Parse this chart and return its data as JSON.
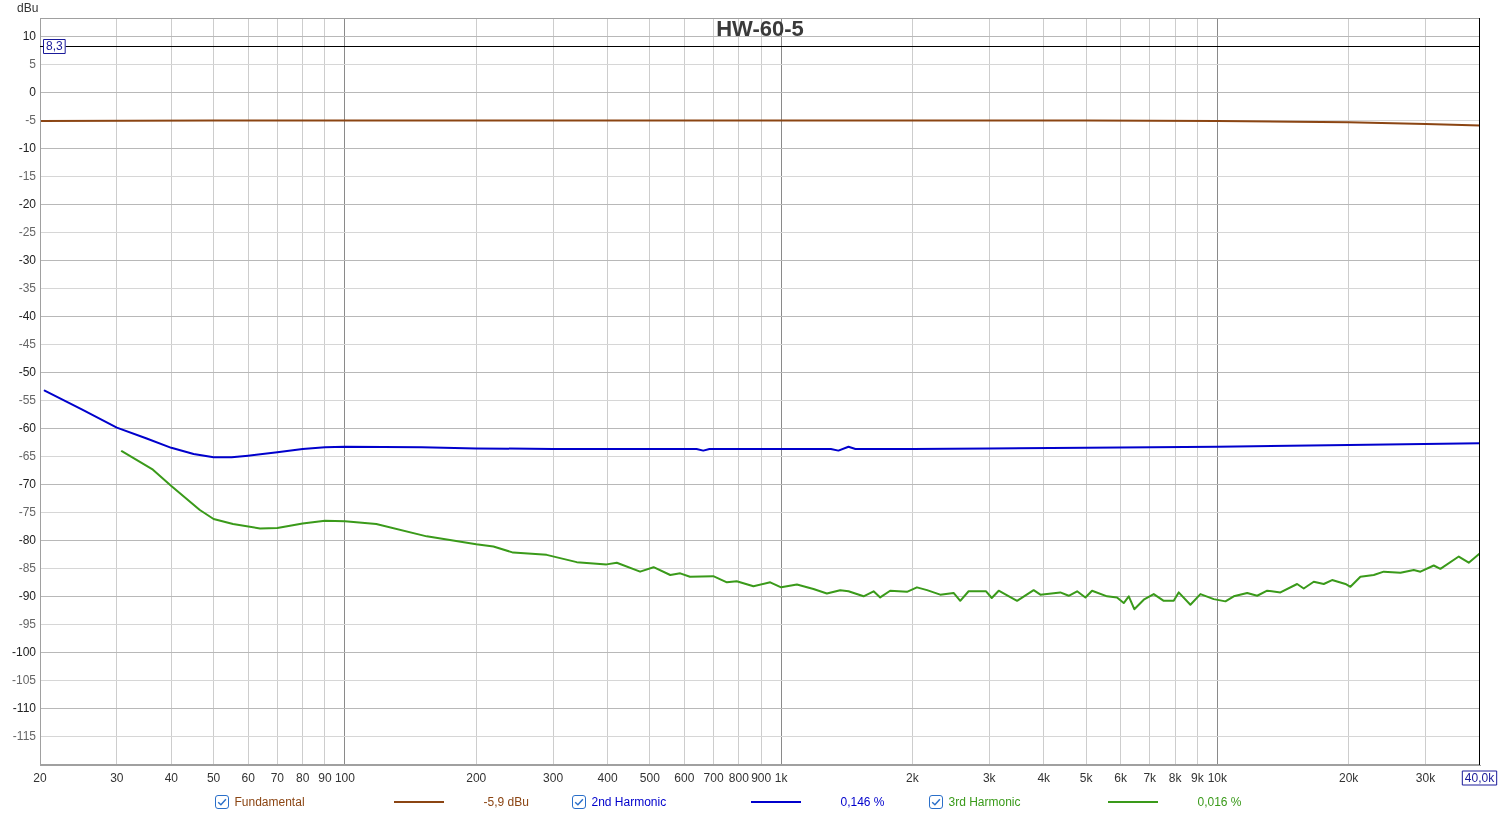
{
  "chart_data": {
    "type": "line",
    "title": "HW-60-5",
    "ylabel": "dBu",
    "xlim": [
      20,
      40000
    ],
    "xticks": [
      20,
      30,
      40,
      50,
      60,
      70,
      80,
      90,
      100,
      200,
      300,
      400,
      500,
      600,
      700,
      800,
      900,
      {
        "value": 1000,
        "label": "1k"
      },
      {
        "value": 2000,
        "label": "2k"
      },
      {
        "value": 3000,
        "label": "3k"
      },
      {
        "value": 4000,
        "label": "4k"
      },
      {
        "value": 5000,
        "label": "5k"
      },
      {
        "value": 6000,
        "label": "6k"
      },
      {
        "value": 7000,
        "label": "7k"
      },
      {
        "value": 8000,
        "label": "8k"
      },
      {
        "value": 9000,
        "label": "9k"
      },
      {
        "value": 10000,
        "label": "10k"
      },
      {
        "value": 20000,
        "label": "20k"
      },
      {
        "value": 30000,
        "label": "30k"
      }
    ],
    "ylim": [
      -120,
      13.3
    ],
    "yticks": [
      10,
      5,
      0,
      -5,
      -10,
      -15,
      -20,
      -25,
      -30,
      -35,
      -40,
      -45,
      -50,
      -55,
      -60,
      -65,
      -70,
      -75,
      -80,
      -85,
      -90,
      -95,
      -100,
      -105,
      -110,
      -115
    ],
    "log": "x",
    "grid": true,
    "legend": "bottom",
    "line_style": "solid",
    "ref_lines": [
      {
        "axis": "y",
        "value": 8.3,
        "label": "8,3",
        "color": "#000000"
      },
      {
        "axis": "x",
        "value": 40000,
        "label": "40,0k",
        "color": "#000000"
      }
    ],
    "annotations": [
      "-5,9 dBu",
      "0,146 %",
      "0,016 %"
    ],
    "series": [
      {
        "name": "Fundamental",
        "color": "#8b4513",
        "x": [
          20,
          50,
          100,
          1000,
          3000,
          5000,
          10000,
          15000,
          20000,
          30000,
          40000
        ],
        "values": [
          -5.1,
          -5,
          -5,
          -5,
          -5,
          -5,
          -5.1,
          -5.2,
          -5.3,
          -5.6,
          -5.9
        ]
      },
      {
        "name": "2nd Harmonic",
        "color": "#0000cc",
        "x": [
          20.5,
          25,
          30,
          35,
          40,
          45,
          50,
          55,
          60,
          70,
          80,
          90,
          100,
          150,
          200,
          300,
          500,
          640,
          663,
          685,
          1000,
          1300,
          1353,
          1427,
          1480,
          2000,
          3000,
          5000,
          10000,
          20000,
          40000
        ],
        "values": [
          -53.2,
          -56.6,
          -59.8,
          -61.7,
          -63.4,
          -64.5,
          -65.1,
          -65.1,
          -64.8,
          -64.2,
          -63.6,
          -63.3,
          -63.2,
          -63.3,
          -63.5,
          -63.6,
          -63.6,
          -63.6,
          -63.9,
          -63.6,
          -63.6,
          -63.6,
          -63.9,
          -63.2,
          -63.6,
          -63.6,
          -63.5,
          -63.4,
          -63.2,
          -62.9,
          -62.6
        ]
      },
      {
        "name": "3rd Harmonic",
        "color": "#3a9a1a",
        "x": [
          30.8,
          36.3,
          40,
          46.5,
          50,
          55.4,
          63.9,
          70,
          80,
          90,
          100,
          118,
          154,
          200,
          219,
          243,
          290,
          340,
          398,
          420,
          475,
          510,
          557,
          587,
          618,
          699,
          751,
          791,
          864,
          944,
          1000,
          1087,
          1186,
          1273,
          1366,
          1427,
          1545,
          1629,
          1687,
          1778,
          1943,
          2048,
          2160,
          2316,
          2485,
          2574,
          2690,
          2950,
          3040,
          3153,
          3474,
          3792,
          3929,
          4365,
          4563,
          4769,
          4983,
          5161,
          5587,
          5888,
          6100,
          6265,
          6451,
          6780,
          7147,
          7535,
          7942,
          8153,
          8673,
          9146,
          9810,
          10435,
          10904,
          11706,
          12340,
          13007,
          13951,
          15235,
          15776,
          16631,
          17535,
          18323,
          19662,
          20184,
          21276,
          22829,
          24066,
          26289,
          28198,
          29211,
          31333,
          32454,
          35758,
          37693,
          40000
        ],
        "values": [
          -64,
          -67.3,
          -70.2,
          -74.5,
          -76.1,
          -77,
          -77.8,
          -77.7,
          -76.9,
          -76.4,
          -76.5,
          -77,
          -79.2,
          -80.6,
          -81,
          -82.1,
          -82.5,
          -83.8,
          -84.2,
          -83.9,
          -85.5,
          -84.7,
          -86.1,
          -85.8,
          -86.4,
          -86.3,
          -87.4,
          -87.2,
          -88.1,
          -87.4,
          -88.3,
          -87.8,
          -88.6,
          -89.4,
          -88.8,
          -89,
          -89.9,
          -89,
          -90.1,
          -88.9,
          -89.1,
          -88.3,
          -88.8,
          -89.6,
          -89.3,
          -90.7,
          -89,
          -89,
          -90.2,
          -88.9,
          -90.7,
          -88.8,
          -89.6,
          -89.2,
          -89.8,
          -89,
          -90.1,
          -88.9,
          -89.9,
          -90.1,
          -91.1,
          -89.9,
          -92.2,
          -90.5,
          -89.5,
          -90.7,
          -90.7,
          -89.2,
          -91.4,
          -89.5,
          -90.4,
          -90.8,
          -89.9,
          -89.3,
          -89.8,
          -88.9,
          -89.2,
          -87.7,
          -88.5,
          -87.3,
          -87.7,
          -87,
          -87.7,
          -88.2,
          -86.4,
          -86.1,
          -85.5,
          -85.7,
          -85.2,
          -85.5,
          -84.4,
          -85,
          -82.8,
          -83.9,
          -82.2
        ]
      }
    ]
  }
}
